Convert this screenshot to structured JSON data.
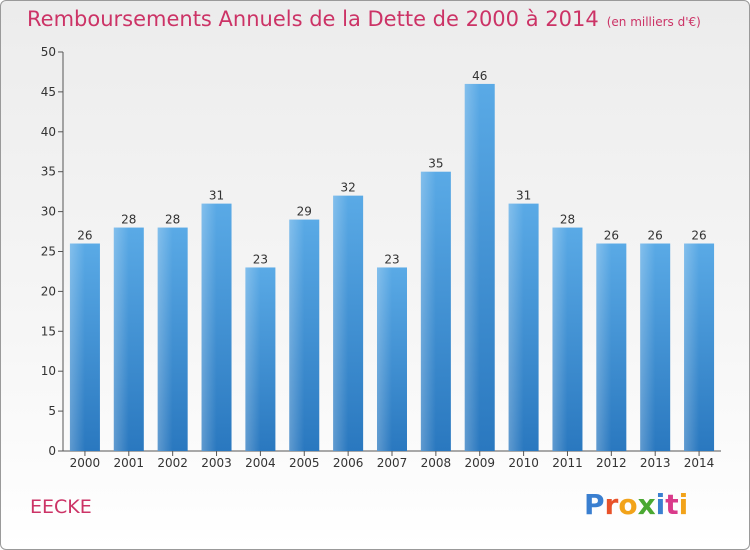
{
  "header": {
    "title": "Remboursements Annuels de la Dette de 2000 à 2014",
    "unit": "(en milliers d'€)"
  },
  "footer": {
    "commune": "EECKE",
    "logo_letters": [
      "P",
      "r",
      "o",
      "x",
      "i",
      "t",
      "i"
    ],
    "logo_colors": [
      "#3a7fd0",
      "#e8522a",
      "#f2a31a",
      "#4aa832",
      "#3a7fd0",
      "#d93a8a",
      "#f2a31a"
    ]
  },
  "chart_data": {
    "type": "bar",
    "title": "Remboursements Annuels de la Dette de 2000 à 2014",
    "xlabel": "",
    "ylabel": "",
    "categories": [
      "2000",
      "2001",
      "2002",
      "2003",
      "2004",
      "2005",
      "2006",
      "2007",
      "2008",
      "2009",
      "2010",
      "2011",
      "2012",
      "2013",
      "2014"
    ],
    "values": [
      26,
      28,
      28,
      31,
      23,
      29,
      32,
      23,
      35,
      46,
      31,
      28,
      26,
      26,
      26
    ],
    "ylim": [
      0,
      50
    ],
    "yticks": [
      0,
      5,
      10,
      15,
      20,
      25,
      30,
      35,
      40,
      45,
      50
    ],
    "grid": false,
    "colors": {
      "bar_top": "#5aaae6",
      "bar_bottom": "#2a78bf",
      "axis": "#555555",
      "title": "#cc3366"
    }
  }
}
